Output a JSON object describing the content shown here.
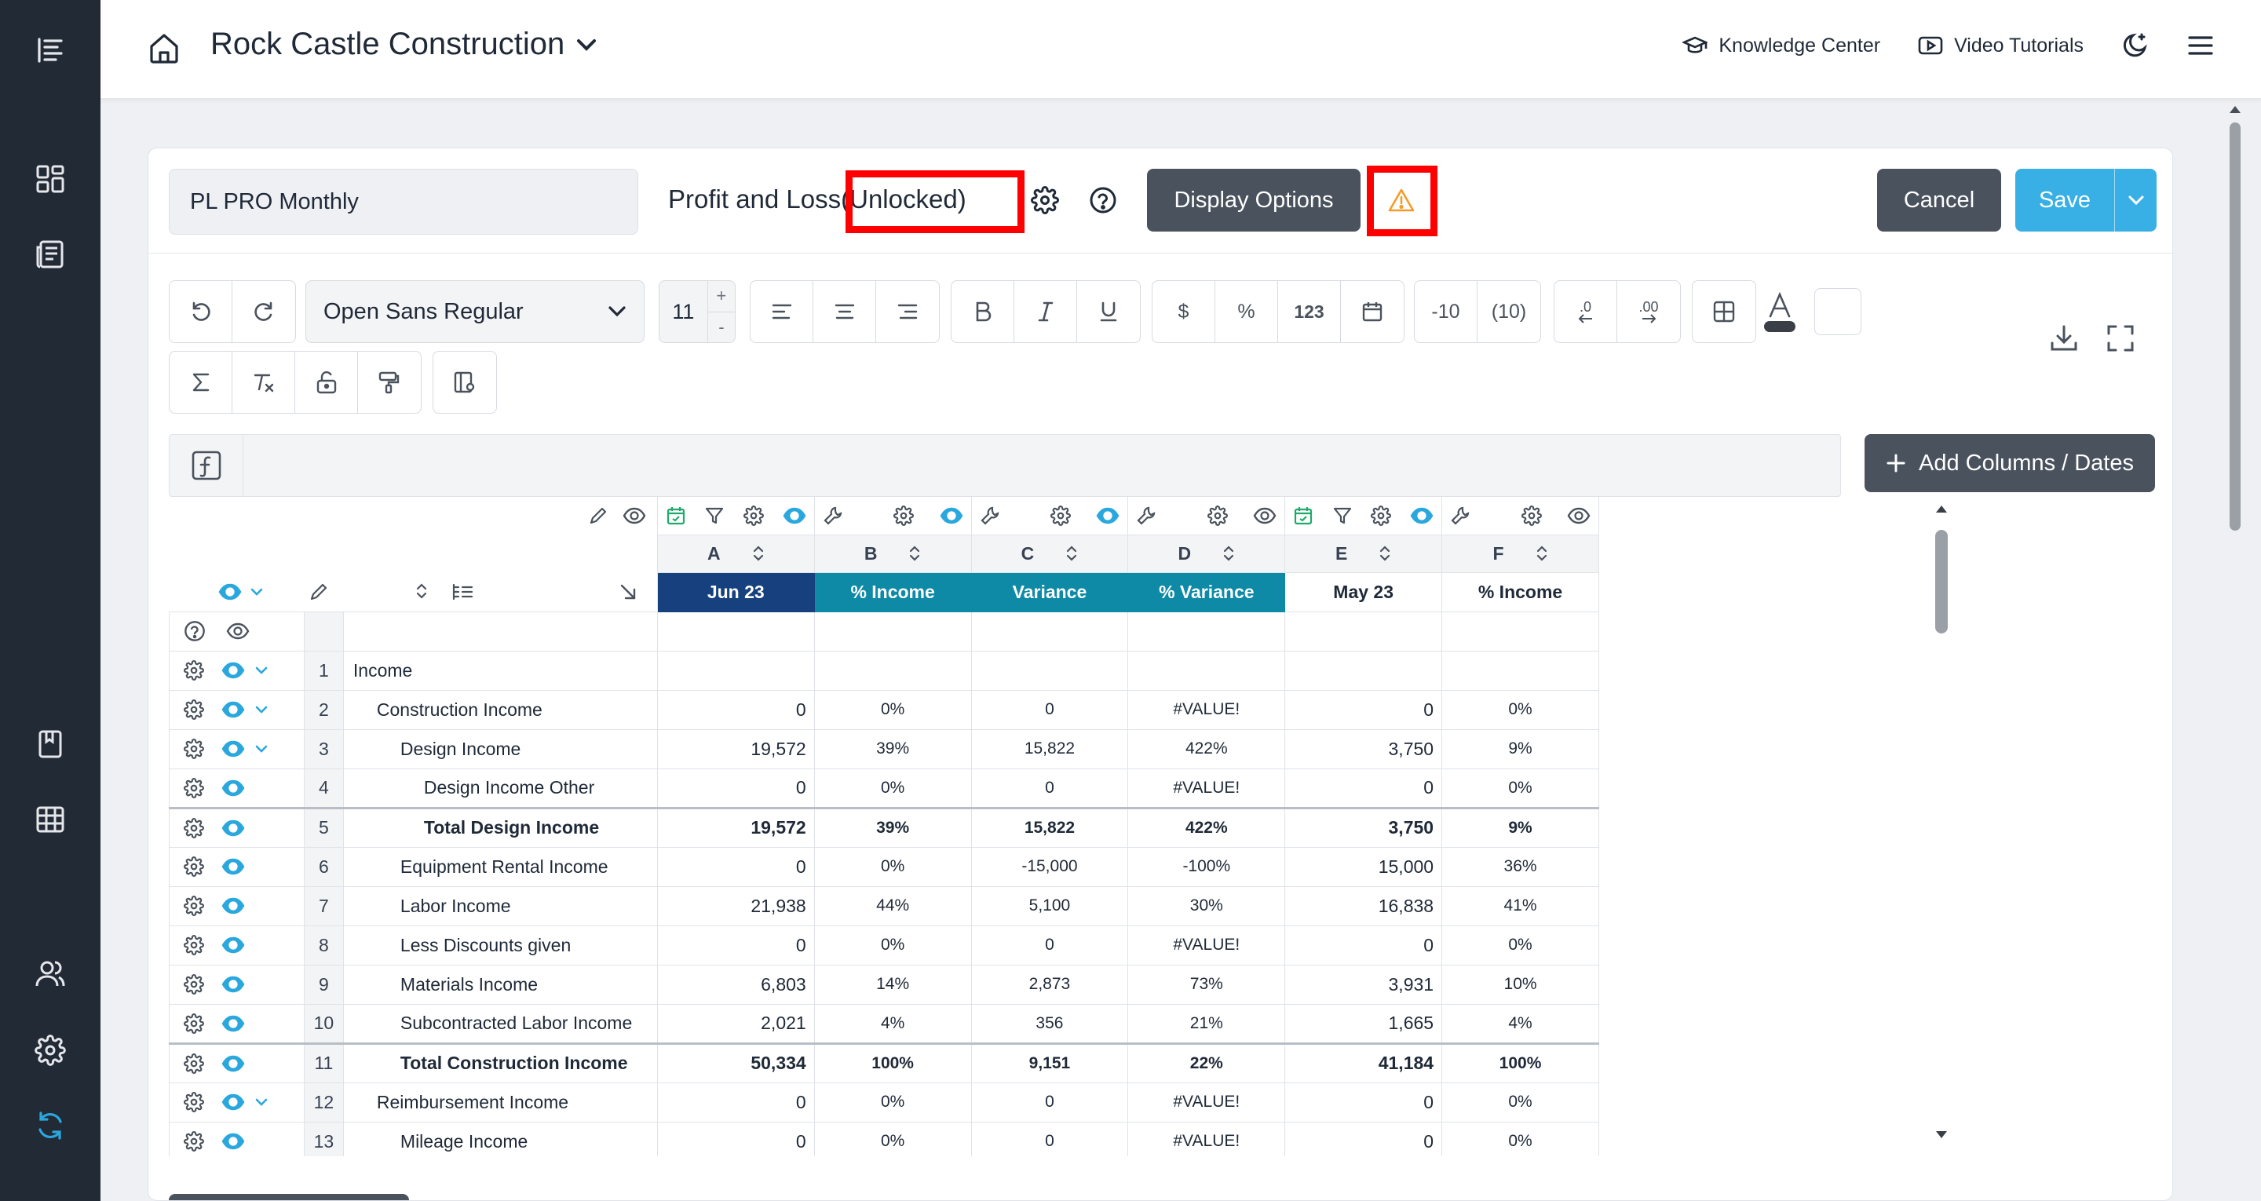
{
  "company": {
    "name": "Rock Castle Construction"
  },
  "toplinks": {
    "knowledge": "Knowledge Center",
    "video": "Video Tutorials"
  },
  "report": {
    "name": "PL PRO Monthly",
    "title": "Profit and Loss",
    "status": "(Unlocked)",
    "display_options": "Display Options",
    "cancel": "Cancel",
    "save": "Save"
  },
  "toolbar": {
    "font": "Open Sans Regular",
    "font_size": "11",
    "plus": "+",
    "minus": "-",
    "dollar": "$",
    "percent": "%",
    "number": "123",
    "neg_minus": "-10",
    "neg_paren": "(10)",
    "dec_dec": ".0",
    "dec_inc": ".00"
  },
  "add_columns": "Add Columns / Dates",
  "columns": [
    {
      "letter": "A",
      "label": "Jun 23",
      "bg": "#16417e",
      "fg": "#ffffff"
    },
    {
      "letter": "B",
      "label": "% Income",
      "bg": "#0e8aa6",
      "fg": "#ffffff"
    },
    {
      "letter": "C",
      "label": "Variance",
      "bg": "#0e8aa6",
      "fg": "#ffffff"
    },
    {
      "letter": "D",
      "label": "% Variance",
      "bg": "#0e8aa6",
      "fg": "#ffffff"
    },
    {
      "letter": "E",
      "label": "May 23",
      "bg": "#ffffff",
      "fg": "#1f2937"
    },
    {
      "letter": "F",
      "label": "% Income",
      "bg": "#ffffff",
      "fg": "#1f2937"
    }
  ],
  "rows": [
    {
      "n": "1",
      "label": "Income",
      "indent": 0,
      "bold": false,
      "chev": true,
      "vals": [
        "",
        "",
        "",
        "",
        "",
        ""
      ]
    },
    {
      "n": "2",
      "label": "Construction Income",
      "indent": 1,
      "bold": false,
      "chev": true,
      "vals": [
        "0",
        "0%",
        "0",
        "#VALUE!",
        "0",
        "0%"
      ]
    },
    {
      "n": "3",
      "label": "Design Income",
      "indent": 2,
      "bold": false,
      "chev": true,
      "vals": [
        "19,572",
        "39%",
        "15,822",
        "422%",
        "3,750",
        "9%"
      ]
    },
    {
      "n": "4",
      "label": "Design Income Other",
      "indent": 3,
      "bold": false,
      "chev": false,
      "vals": [
        "0",
        "0%",
        "0",
        "#VALUE!",
        "0",
        "0%"
      ]
    },
    {
      "n": "5",
      "label": "Total Design Income",
      "indent": 3,
      "bold": true,
      "chev": false,
      "vals": [
        "19,572",
        "39%",
        "15,822",
        "422%",
        "3,750",
        "9%"
      ]
    },
    {
      "n": "6",
      "label": "Equipment Rental Income",
      "indent": 2,
      "bold": false,
      "chev": false,
      "vals": [
        "0",
        "0%",
        "-15,000",
        "-100%",
        "15,000",
        "36%"
      ]
    },
    {
      "n": "7",
      "label": "Labor Income",
      "indent": 2,
      "bold": false,
      "chev": false,
      "vals": [
        "21,938",
        "44%",
        "5,100",
        "30%",
        "16,838",
        "41%"
      ]
    },
    {
      "n": "8",
      "label": "Less Discounts given",
      "indent": 2,
      "bold": false,
      "chev": false,
      "vals": [
        "0",
        "0%",
        "0",
        "#VALUE!",
        "0",
        "0%"
      ]
    },
    {
      "n": "9",
      "label": "Materials Income",
      "indent": 2,
      "bold": false,
      "chev": false,
      "vals": [
        "6,803",
        "14%",
        "2,873",
        "73%",
        "3,931",
        "10%"
      ]
    },
    {
      "n": "10",
      "label": "Subcontracted Labor Income",
      "indent": 2,
      "bold": false,
      "chev": false,
      "vals": [
        "2,021",
        "4%",
        "356",
        "21%",
        "1,665",
        "4%"
      ]
    },
    {
      "n": "11",
      "label": "Total Construction Income",
      "indent": 2,
      "bold": true,
      "chev": false,
      "vals": [
        "50,334",
        "100%",
        "9,151",
        "22%",
        "41,184",
        "100%"
      ]
    },
    {
      "n": "12",
      "label": "Reimbursement Income",
      "indent": 1,
      "bold": false,
      "chev": true,
      "vals": [
        "0",
        "0%",
        "0",
        "#VALUE!",
        "0",
        "0%"
      ]
    },
    {
      "n": "13",
      "label": "Mileage Income",
      "indent": 2,
      "bold": false,
      "chev": false,
      "vals": [
        "0",
        "0%",
        "0",
        "#VALUE!",
        "0",
        "0%"
      ]
    }
  ],
  "colors": {
    "rail": "#222a36",
    "eye": "#2aa8de",
    "green": "#1faa6b",
    "warn": "#f39c2b",
    "save": "#38b0e5",
    "refresh": "#2aa8de"
  }
}
